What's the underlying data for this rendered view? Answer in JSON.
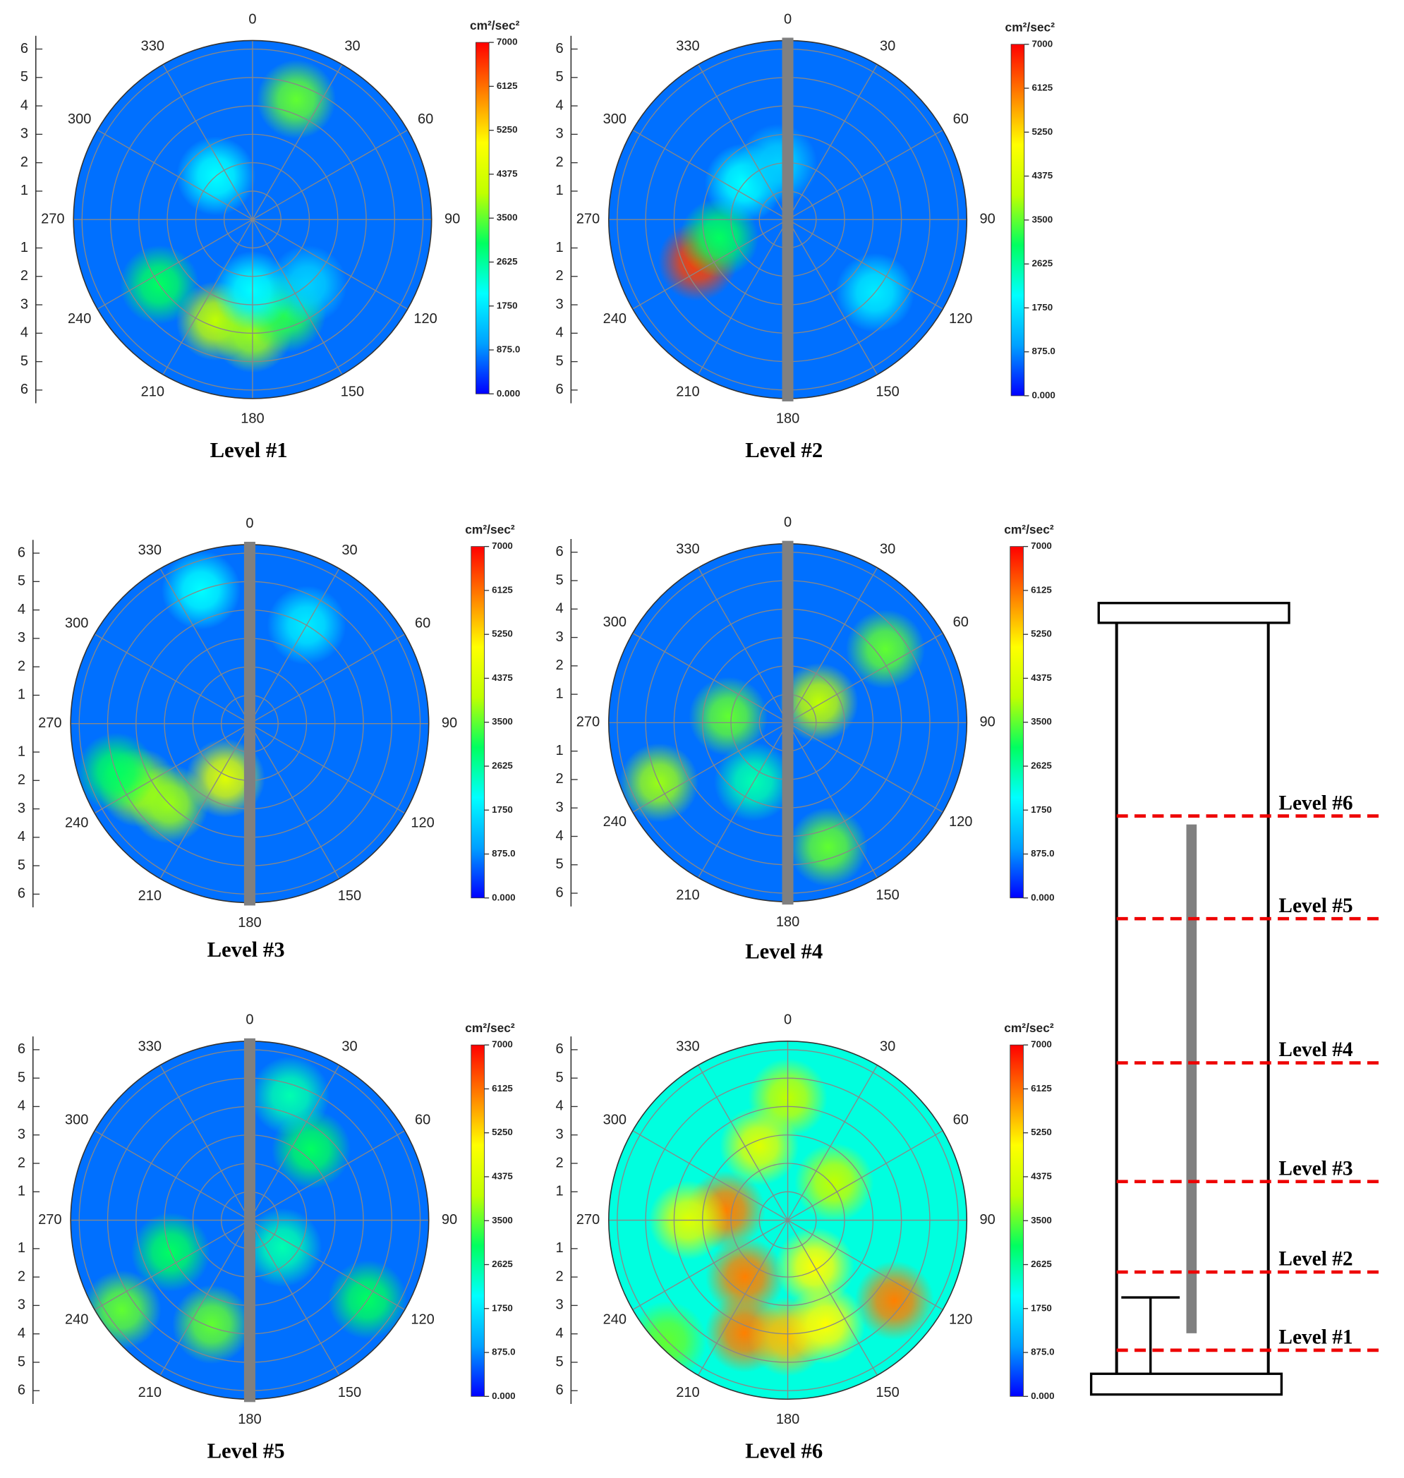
{
  "chart_data": [
    {
      "type": "polar_heatmap",
      "title": "Level #1",
      "rod": false,
      "rlim": [
        0,
        6.3
      ],
      "rticks": [
        1,
        2,
        3,
        4,
        5,
        6
      ],
      "thetaticks": [
        0,
        30,
        60,
        90,
        120,
        150,
        180,
        210,
        240,
        270,
        300,
        330
      ],
      "colorbar_label": "cm²/sec²",
      "clim": [
        0,
        7000
      ],
      "cticks": [
        {
          "value": 0,
          "label": "0.000"
        },
        {
          "value": 875,
          "label": "875.0"
        },
        1750,
        2625,
        3500,
        4375,
        5250,
        6125,
        7000
      ],
      "colorscale": [
        "#0000ff",
        "#00a0ff",
        "#00ffff",
        "#00ff60",
        "#c0ff00",
        "#ffff00",
        "#ff8000",
        "#ff0000"
      ],
      "base_value": 700,
      "hotspots": [
        {
          "theta": 200,
          "r": 3.8,
          "value": 4000
        },
        {
          "theta": 180,
          "r": 4,
          "value": 3800
        },
        {
          "theta": 160,
          "r": 3.5,
          "value": 3200
        },
        {
          "theta": 20,
          "r": 4.5,
          "value": 3500
        },
        {
          "theta": 235,
          "r": 4,
          "value": 3000
        },
        {
          "theta": 320,
          "r": 2,
          "value": 2000
        },
        {
          "theta": 180,
          "r": 2.5,
          "value": 2000
        },
        {
          "theta": 140,
          "r": 3,
          "value": 1500
        }
      ]
    },
    {
      "type": "polar_heatmap",
      "title": "Level #2",
      "rod": true,
      "rlim": [
        0,
        6.3
      ],
      "rticks": [
        1,
        2,
        3,
        4,
        5,
        6
      ],
      "thetaticks": [
        0,
        30,
        60,
        90,
        120,
        150,
        180,
        210,
        240,
        270,
        300,
        330
      ],
      "colorbar_label": "cm²/sec²",
      "clim": [
        0,
        7000
      ],
      "cticks": [
        {
          "value": 0,
          "label": "0.000"
        },
        {
          "value": 875,
          "label": "875.0"
        },
        1750,
        2625,
        3500,
        4375,
        5250,
        6125,
        7000
      ],
      "colorscale": [
        "#0000ff",
        "#00a0ff",
        "#00ffff",
        "#00ff60",
        "#c0ff00",
        "#ffff00",
        "#ff8000",
        "#ff0000"
      ],
      "base_value": 700,
      "hotspots": [
        {
          "theta": 245,
          "r": 3.5,
          "value": 6500
        },
        {
          "theta": 255,
          "r": 2.5,
          "value": 3000
        },
        {
          "theta": 310,
          "r": 2,
          "value": 2000
        },
        {
          "theta": 130,
          "r": 4,
          "value": 1800
        },
        {
          "theta": 350,
          "r": 2,
          "value": 1500
        }
      ]
    },
    {
      "type": "polar_heatmap",
      "title": "Level #3",
      "rod": true,
      "rlim": [
        0,
        6.3
      ],
      "rticks": [
        1,
        2,
        3,
        4,
        5,
        6
      ],
      "thetaticks": [
        0,
        30,
        60,
        90,
        120,
        150,
        180,
        210,
        240,
        270,
        300,
        330
      ],
      "colorbar_label": "cm²/sec²",
      "clim": [
        0,
        7000
      ],
      "cticks": [
        {
          "value": 0,
          "label": "0.000"
        },
        {
          "value": 875,
          "label": "875.0"
        },
        1750,
        2625,
        3500,
        4375,
        5250,
        6125,
        7000
      ],
      "colorscale": [
        "#0000ff",
        "#00a0ff",
        "#00ffff",
        "#00ff60",
        "#c0ff00",
        "#ffff00",
        "#ff8000",
        "#ff0000"
      ],
      "base_value": 700,
      "hotspots": [
        {
          "theta": 240,
          "r": 4.5,
          "value": 3800
        },
        {
          "theta": 225,
          "r": 4,
          "value": 3800
        },
        {
          "theta": 204,
          "r": 2.1,
          "value": 4500
        },
        {
          "theta": 250,
          "r": 5,
          "value": 3000
        },
        {
          "theta": 340,
          "r": 5,
          "value": 2000
        },
        {
          "theta": 30,
          "r": 4,
          "value": 1800
        }
      ]
    },
    {
      "type": "polar_heatmap",
      "title": "Level #4",
      "rod": true,
      "rlim": [
        0,
        6.3
      ],
      "rticks": [
        1,
        2,
        3,
        4,
        5,
        6
      ],
      "thetaticks": [
        0,
        30,
        60,
        90,
        120,
        150,
        180,
        210,
        240,
        270,
        300,
        330
      ],
      "colorbar_label": "cm²/sec²",
      "clim": [
        0,
        7000
      ],
      "cticks": [
        {
          "value": 0,
          "label": "0.000"
        },
        {
          "value": 875,
          "label": "875.0"
        },
        1750,
        2625,
        3500,
        4375,
        5250,
        6125,
        7000
      ],
      "colorscale": [
        "#0000ff",
        "#00a0ff",
        "#00ffff",
        "#00ff60",
        "#c0ff00",
        "#ffff00",
        "#ff8000",
        "#ff0000"
      ],
      "base_value": 700,
      "hotspots": [
        {
          "theta": 57,
          "r": 1.3,
          "value": 4000
        },
        {
          "theta": 276,
          "r": 2.1,
          "value": 3500
        },
        {
          "theta": 53,
          "r": 4.3,
          "value": 3500
        },
        {
          "theta": 162,
          "r": 4.6,
          "value": 3500
        },
        {
          "theta": 210,
          "r": 2.4,
          "value": 2500
        },
        {
          "theta": 245,
          "r": 5,
          "value": 3800
        }
      ]
    },
    {
      "type": "polar_heatmap",
      "title": "Level #5",
      "rod": true,
      "rlim": [
        0,
        6.3
      ],
      "rticks": [
        1,
        2,
        3,
        4,
        5,
        6
      ],
      "thetaticks": [
        0,
        30,
        60,
        90,
        120,
        150,
        180,
        210,
        240,
        270,
        300,
        330
      ],
      "colorbar_label": "cm²/sec²",
      "clim": [
        0,
        7000
      ],
      "cticks": [
        {
          "value": 0,
          "label": "0.000"
        },
        {
          "value": 875,
          "label": "875.0"
        },
        1750,
        2625,
        3500,
        4375,
        5250,
        6125,
        7000
      ],
      "colorscale": [
        "#0000ff",
        "#00a0ff",
        "#00ffff",
        "#00ff60",
        "#c0ff00",
        "#ffff00",
        "#ff8000",
        "#ff0000"
      ],
      "base_value": 700,
      "hotspots": [
        {
          "theta": 41,
          "r": 3.3,
          "value": 3000
        },
        {
          "theta": 18,
          "r": 4.6,
          "value": 2500
        },
        {
          "theta": 200,
          "r": 3.9,
          "value": 3500
        },
        {
          "theta": 235,
          "r": 5.5,
          "value": 3500
        },
        {
          "theta": 124,
          "r": 5,
          "value": 3000
        },
        {
          "theta": 248,
          "r": 3,
          "value": 3000
        },
        {
          "theta": 130,
          "r": 1.5,
          "value": 2500
        }
      ]
    },
    {
      "type": "polar_heatmap",
      "title": "Level #6",
      "rod": false,
      "rlim": [
        0,
        6.3
      ],
      "rticks": [
        1,
        2,
        3,
        4,
        5,
        6
      ],
      "thetaticks": [
        0,
        30,
        60,
        90,
        120,
        150,
        180,
        210,
        240,
        270,
        300,
        330
      ],
      "colorbar_label": "cm²/sec²",
      "clim": [
        0,
        7000
      ],
      "cticks": [
        {
          "value": 0,
          "label": "0.000"
        },
        {
          "value": 875,
          "label": "875.0"
        },
        1750,
        2625,
        3500,
        4375,
        5250,
        6125,
        7000
      ],
      "colorscale": [
        "#0000ff",
        "#00a0ff",
        "#00ffff",
        "#00ff60",
        "#c0ff00",
        "#ffff00",
        "#ff8000",
        "#ff0000"
      ],
      "base_value": 2200,
      "hotspots": [
        {
          "theta": 201,
          "r": 4.25,
          "value": 6000
        },
        {
          "theta": 180,
          "r": 4.1,
          "value": 5500
        },
        {
          "theta": 160,
          "r": 3.9,
          "value": 5000
        },
        {
          "theta": 127,
          "r": 4.7,
          "value": 6000
        },
        {
          "theta": 217,
          "r": 2.5,
          "value": 6000
        },
        {
          "theta": 279,
          "r": 2.2,
          "value": 6000
        },
        {
          "theta": 150,
          "r": 1.9,
          "value": 5000
        },
        {
          "theta": 0,
          "r": 4.3,
          "value": 4000
        },
        {
          "theta": 339,
          "r": 2.8,
          "value": 4500
        },
        {
          "theta": 51,
          "r": 2.1,
          "value": 4000
        },
        {
          "theta": 270,
          "r": 3.5,
          "value": 4500
        },
        {
          "theta": 225,
          "r": 6,
          "value": 3500
        }
      ]
    }
  ],
  "schematic": {
    "levels": [
      "Level #1",
      "Level #2",
      "Level #3",
      "Level #4",
      "Level #5",
      "Level #6"
    ]
  }
}
